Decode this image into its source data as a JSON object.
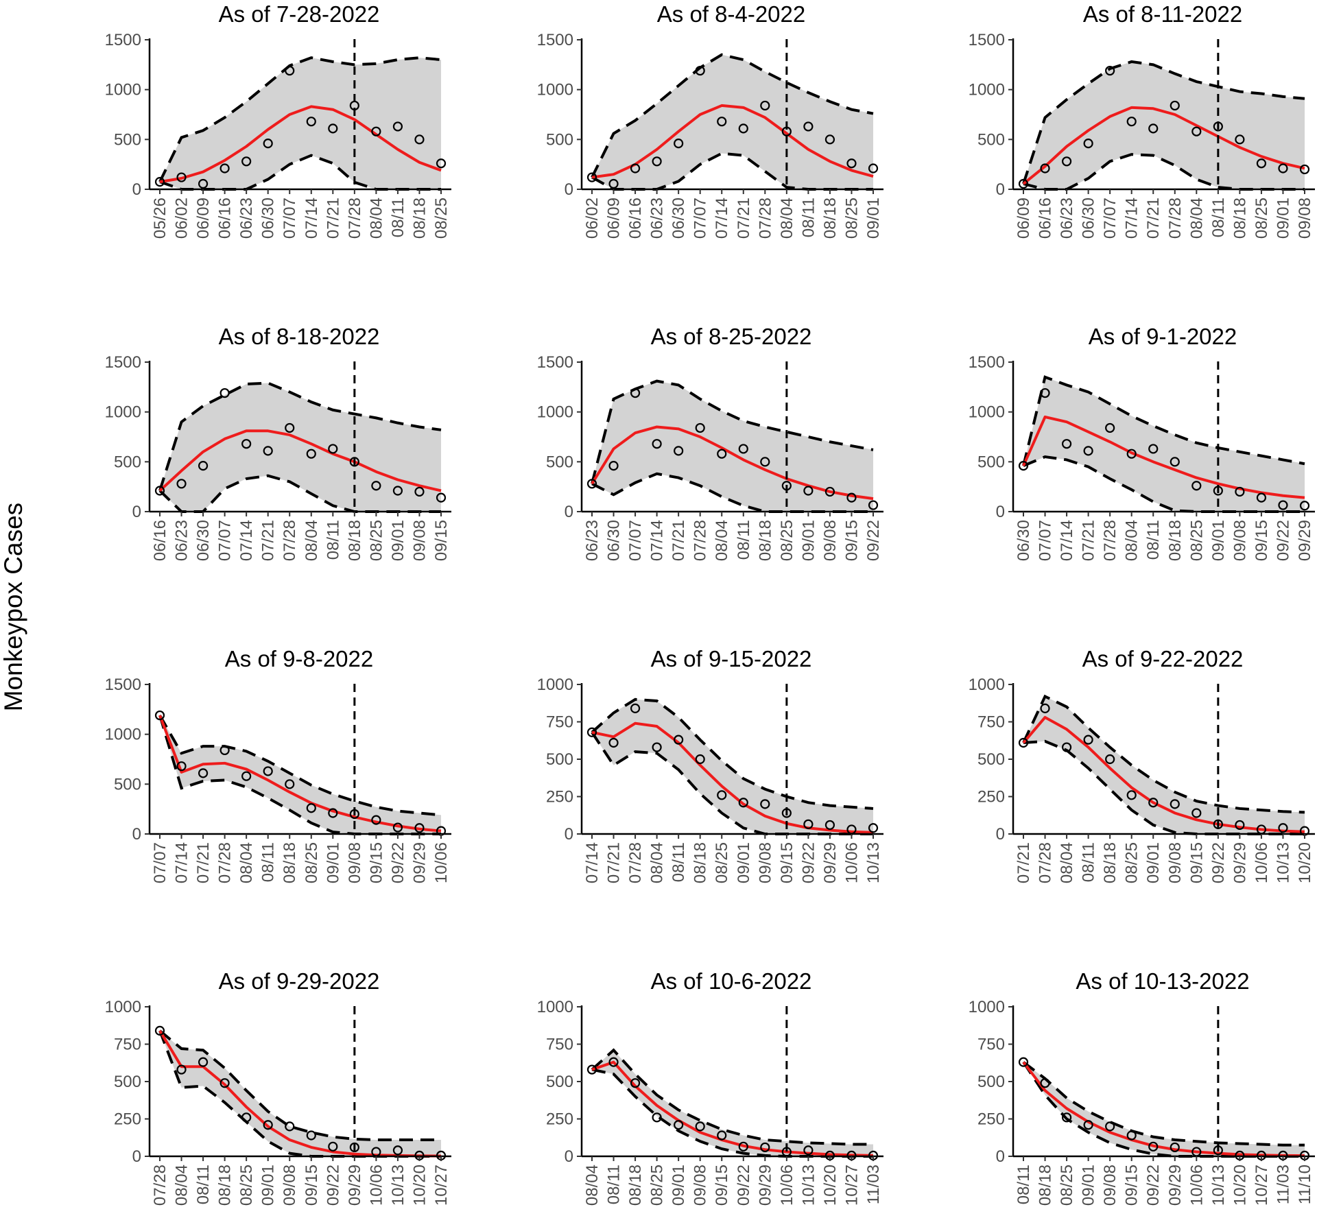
{
  "chart_data": {
    "type": "line",
    "ylabel": "Monkeypox Cases",
    "colors": {
      "band": "#d3d3d3",
      "fit": "#ee1c1c",
      "bounds": "#000000",
      "points": "#000000"
    },
    "panels": [
      {
        "title": "As of 7-28-2022",
        "ylim": [
          0,
          1500
        ],
        "yticks": [
          0,
          500,
          1000,
          1500
        ],
        "dates": [
          "05/26",
          "06/02",
          "06/09",
          "06/16",
          "06/23",
          "06/30",
          "07/07",
          "07/14",
          "07/21",
          "07/28",
          "08/04",
          "08/11",
          "08/18",
          "08/25"
        ],
        "cutoff": "07/28",
        "observed": [
          75,
          120,
          55,
          210,
          280,
          460,
          1190,
          680,
          610,
          840,
          580,
          630,
          500,
          260
        ],
        "fitted": [
          75,
          110,
          175,
          290,
          430,
          600,
          750,
          830,
          800,
          700,
          550,
          400,
          270,
          190
        ],
        "lower": [
          75,
          0,
          0,
          0,
          0,
          100,
          250,
          340,
          260,
          70,
          0,
          0,
          0,
          0
        ],
        "upper": [
          75,
          520,
          590,
          720,
          880,
          1060,
          1240,
          1320,
          1280,
          1250,
          1260,
          1300,
          1320,
          1300
        ]
      },
      {
        "title": "As of 8-4-2022",
        "ylim": [
          0,
          1500
        ],
        "yticks": [
          0,
          500,
          1000,
          1500
        ],
        "dates": [
          "06/02",
          "06/09",
          "06/16",
          "06/23",
          "06/30",
          "07/07",
          "07/14",
          "07/21",
          "07/28",
          "08/04",
          "08/11",
          "08/18",
          "08/25",
          "09/01"
        ],
        "cutoff": "08/04",
        "observed": [
          120,
          55,
          210,
          280,
          460,
          1190,
          680,
          610,
          840,
          580,
          630,
          500,
          260,
          210
        ],
        "fitted": [
          120,
          150,
          250,
          400,
          580,
          750,
          840,
          820,
          720,
          560,
          400,
          280,
          190,
          130
        ],
        "lower": [
          120,
          0,
          0,
          0,
          80,
          250,
          360,
          340,
          180,
          20,
          0,
          0,
          0,
          0
        ],
        "upper": [
          120,
          560,
          690,
          860,
          1040,
          1220,
          1350,
          1300,
          1180,
          1070,
          970,
          880,
          800,
          760
        ]
      },
      {
        "title": "As of 8-11-2022",
        "ylim": [
          0,
          1500
        ],
        "yticks": [
          0,
          500,
          1000,
          1500
        ],
        "dates": [
          "06/09",
          "06/16",
          "06/23",
          "06/30",
          "07/07",
          "07/14",
          "07/21",
          "07/28",
          "08/04",
          "08/11",
          "08/18",
          "08/25",
          "09/01",
          "09/08"
        ],
        "cutoff": "08/11",
        "observed": [
          55,
          210,
          280,
          460,
          1190,
          680,
          610,
          840,
          580,
          630,
          500,
          260,
          210,
          200
        ],
        "fitted": [
          55,
          230,
          430,
          590,
          730,
          820,
          810,
          750,
          640,
          530,
          420,
          330,
          260,
          210
        ],
        "lower": [
          55,
          0,
          0,
          110,
          280,
          350,
          340,
          240,
          100,
          20,
          0,
          0,
          0,
          0
        ],
        "upper": [
          55,
          720,
          900,
          1060,
          1210,
          1280,
          1250,
          1160,
          1080,
          1030,
          980,
          960,
          930,
          910
        ]
      },
      {
        "title": "As of 8-18-2022",
        "ylim": [
          0,
          1500
        ],
        "yticks": [
          0,
          500,
          1000,
          1500
        ],
        "dates": [
          "06/16",
          "06/23",
          "06/30",
          "07/07",
          "07/14",
          "07/21",
          "07/28",
          "08/04",
          "08/11",
          "08/18",
          "08/25",
          "09/01",
          "09/08",
          "09/15"
        ],
        "cutoff": "08/18",
        "observed": [
          210,
          280,
          460,
          1190,
          680,
          610,
          840,
          580,
          630,
          500,
          260,
          210,
          200,
          140
        ],
        "fitted": [
          210,
          410,
          600,
          730,
          810,
          810,
          770,
          680,
          580,
          500,
          400,
          320,
          260,
          210
        ],
        "lower": [
          210,
          0,
          0,
          230,
          330,
          360,
          300,
          180,
          60,
          0,
          0,
          0,
          0,
          0
        ],
        "upper": [
          210,
          900,
          1060,
          1170,
          1280,
          1290,
          1200,
          1100,
          1020,
          980,
          940,
          890,
          850,
          820
        ]
      },
      {
        "title": "As of 8-25-2022",
        "ylim": [
          0,
          1500
        ],
        "yticks": [
          0,
          500,
          1000,
          1500
        ],
        "dates": [
          "06/23",
          "06/30",
          "07/07",
          "07/14",
          "07/21",
          "07/28",
          "08/04",
          "08/11",
          "08/18",
          "08/25",
          "09/01",
          "09/08",
          "09/15",
          "09/22"
        ],
        "cutoff": "08/25",
        "observed": [
          280,
          460,
          1190,
          680,
          610,
          840,
          580,
          630,
          500,
          260,
          210,
          200,
          140,
          65
        ],
        "fitted": [
          280,
          630,
          790,
          850,
          830,
          750,
          640,
          520,
          420,
          330,
          260,
          200,
          160,
          130
        ],
        "lower": [
          280,
          170,
          290,
          380,
          340,
          260,
          150,
          60,
          0,
          0,
          0,
          0,
          0,
          0
        ],
        "upper": [
          280,
          1130,
          1230,
          1310,
          1270,
          1130,
          1010,
          910,
          850,
          800,
          750,
          700,
          660,
          620
        ]
      },
      {
        "title": "As of 9-1-2022",
        "ylim": [
          0,
          1500
        ],
        "yticks": [
          0,
          500,
          1000,
          1500
        ],
        "dates": [
          "06/30",
          "07/07",
          "07/14",
          "07/21",
          "07/28",
          "08/04",
          "08/11",
          "08/18",
          "08/25",
          "09/01",
          "09/08",
          "09/15",
          "09/22",
          "09/29"
        ],
        "cutoff": "09/01",
        "observed": [
          460,
          1190,
          680,
          610,
          840,
          580,
          630,
          500,
          260,
          210,
          200,
          140,
          65,
          60
        ],
        "fitted": [
          460,
          950,
          900,
          800,
          700,
          590,
          500,
          420,
          340,
          280,
          230,
          190,
          160,
          140
        ],
        "lower": [
          460,
          550,
          520,
          450,
          330,
          220,
          100,
          10,
          0,
          0,
          0,
          0,
          0,
          0
        ],
        "upper": [
          460,
          1350,
          1270,
          1200,
          1080,
          960,
          860,
          770,
          690,
          640,
          600,
          560,
          520,
          480
        ]
      },
      {
        "title": "As of 9-8-2022",
        "ylim": [
          0,
          1500
        ],
        "yticks": [
          0,
          500,
          1000,
          1500
        ],
        "dates": [
          "07/07",
          "07/14",
          "07/21",
          "07/28",
          "08/04",
          "08/11",
          "08/18",
          "08/25",
          "09/01",
          "09/08",
          "09/15",
          "09/22",
          "09/29",
          "10/06"
        ],
        "cutoff": "09/08",
        "observed": [
          1190,
          680,
          610,
          840,
          580,
          630,
          500,
          260,
          210,
          200,
          140,
          65,
          60,
          30
        ],
        "fitted": [
          1190,
          620,
          700,
          710,
          650,
          540,
          420,
          310,
          230,
          170,
          120,
          80,
          50,
          30
        ],
        "lower": [
          1190,
          460,
          530,
          540,
          470,
          360,
          240,
          110,
          20,
          0,
          0,
          0,
          0,
          0
        ],
        "upper": [
          1190,
          810,
          880,
          880,
          830,
          730,
          610,
          490,
          400,
          330,
          270,
          230,
          210,
          190
        ]
      },
      {
        "title": "As of 9-15-2022",
        "ylim": [
          0,
          1000
        ],
        "yticks": [
          0,
          250,
          500,
          750,
          1000
        ],
        "dates": [
          "07/14",
          "07/21",
          "07/28",
          "08/04",
          "08/11",
          "08/18",
          "08/25",
          "09/01",
          "09/08",
          "09/15",
          "09/22",
          "09/29",
          "10/06",
          "10/13"
        ],
        "cutoff": "09/15",
        "observed": [
          680,
          610,
          840,
          580,
          630,
          500,
          260,
          210,
          200,
          140,
          65,
          60,
          30,
          40
        ],
        "fitted": [
          680,
          650,
          740,
          720,
          610,
          460,
          320,
          200,
          120,
          70,
          40,
          25,
          15,
          10
        ],
        "lower": [
          680,
          460,
          550,
          540,
          430,
          270,
          140,
          40,
          0,
          0,
          0,
          0,
          0,
          0
        ],
        "upper": [
          680,
          810,
          900,
          890,
          780,
          630,
          490,
          370,
          300,
          250,
          210,
          190,
          180,
          170
        ]
      },
      {
        "title": "As of 9-22-2022",
        "ylim": [
          0,
          1000
        ],
        "yticks": [
          0,
          250,
          500,
          750,
          1000
        ],
        "dates": [
          "07/21",
          "07/28",
          "08/04",
          "08/11",
          "08/18",
          "08/25",
          "09/01",
          "09/08",
          "09/15",
          "09/22",
          "09/29",
          "10/06",
          "10/13",
          "10/20"
        ],
        "cutoff": "09/22",
        "observed": [
          610,
          840,
          580,
          630,
          500,
          260,
          210,
          200,
          140,
          65,
          60,
          30,
          40,
          20
        ],
        "fitted": [
          610,
          780,
          700,
          580,
          440,
          310,
          210,
          140,
          95,
          65,
          45,
          30,
          20,
          15
        ],
        "lower": [
          610,
          620,
          560,
          440,
          300,
          160,
          60,
          10,
          0,
          0,
          0,
          0,
          0,
          0
        ],
        "upper": [
          610,
          920,
          850,
          710,
          580,
          460,
          360,
          280,
          220,
          190,
          170,
          160,
          150,
          145
        ]
      },
      {
        "title": "As of 9-29-2022",
        "ylim": [
          0,
          1000
        ],
        "yticks": [
          0,
          250,
          500,
          750,
          1000
        ],
        "dates": [
          "07/28",
          "08/04",
          "08/11",
          "08/18",
          "08/25",
          "09/01",
          "09/08",
          "09/15",
          "09/22",
          "09/29",
          "10/06",
          "10/13",
          "10/20",
          "10/27"
        ],
        "cutoff": "09/29",
        "observed": [
          840,
          580,
          630,
          490,
          260,
          210,
          200,
          140,
          65,
          60,
          30,
          40,
          5,
          5
        ],
        "fitted": [
          840,
          600,
          600,
          480,
          330,
          200,
          110,
          60,
          30,
          15,
          8,
          5,
          3,
          2
        ],
        "lower": [
          840,
          460,
          470,
          360,
          230,
          100,
          20,
          0,
          0,
          0,
          0,
          0,
          0,
          0
        ],
        "upper": [
          840,
          720,
          710,
          590,
          440,
          300,
          200,
          160,
          130,
          115,
          110,
          110,
          110,
          110
        ]
      },
      {
        "title": "As of 10-6-2022",
        "ylim": [
          0,
          1000
        ],
        "yticks": [
          0,
          250,
          500,
          750,
          1000
        ],
        "dates": [
          "08/04",
          "08/11",
          "08/18",
          "08/25",
          "09/01",
          "09/08",
          "09/15",
          "09/22",
          "09/29",
          "10/06",
          "10/13",
          "10/20",
          "10/27",
          "11/03"
        ],
        "cutoff": "10/06",
        "observed": [
          580,
          630,
          490,
          260,
          210,
          200,
          140,
          65,
          60,
          30,
          40,
          5,
          5,
          5
        ],
        "fitted": [
          580,
          630,
          470,
          340,
          240,
          160,
          110,
          70,
          45,
          30,
          20,
          12,
          8,
          5
        ],
        "lower": [
          580,
          550,
          400,
          270,
          170,
          100,
          50,
          20,
          5,
          0,
          0,
          0,
          0,
          0
        ],
        "upper": [
          580,
          710,
          550,
          410,
          310,
          240,
          180,
          140,
          110,
          100,
          90,
          85,
          80,
          80
        ]
      },
      {
        "title": "As of 10-13-2022",
        "ylim": [
          0,
          1000
        ],
        "yticks": [
          0,
          250,
          500,
          750,
          1000
        ],
        "dates": [
          "08/11",
          "08/18",
          "08/25",
          "09/01",
          "09/08",
          "09/15",
          "09/22",
          "09/29",
          "10/06",
          "10/13",
          "10/20",
          "10/27",
          "11/03",
          "11/10"
        ],
        "cutoff": "10/13",
        "observed": [
          630,
          490,
          260,
          210,
          200,
          140,
          65,
          60,
          30,
          40,
          5,
          5,
          5,
          5
        ],
        "fitted": [
          630,
          440,
          320,
          230,
          160,
          110,
          70,
          45,
          30,
          20,
          12,
          8,
          5,
          4
        ],
        "lower": [
          630,
          410,
          250,
          160,
          90,
          45,
          15,
          0,
          0,
          0,
          0,
          0,
          0,
          0
        ],
        "upper": [
          630,
          520,
          390,
          300,
          230,
          170,
          130,
          110,
          100,
          90,
          85,
          80,
          75,
          75
        ]
      }
    ]
  }
}
